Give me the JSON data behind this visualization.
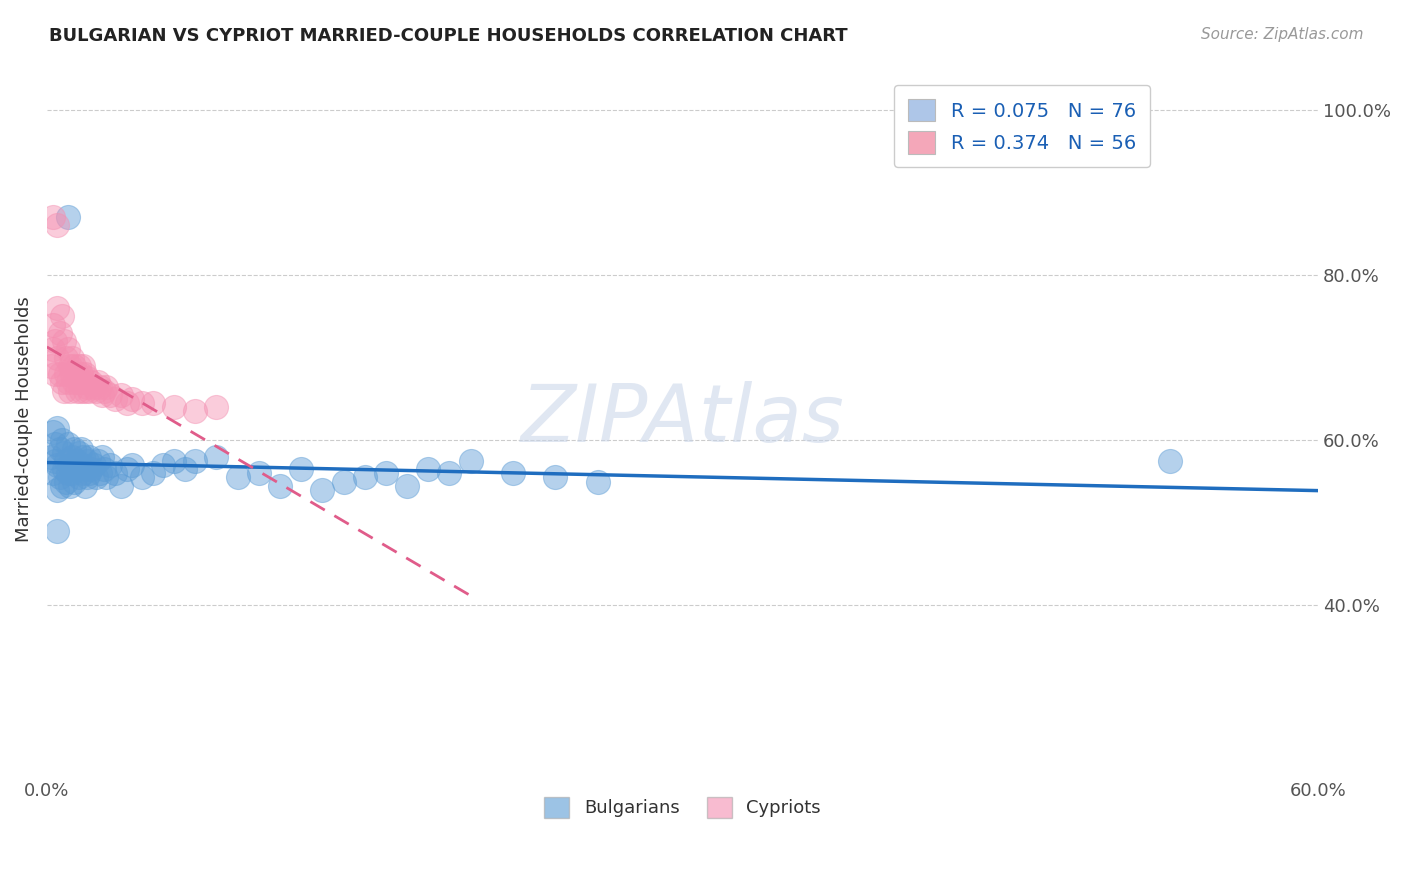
{
  "title": "BULGARIAN VS CYPRIOT MARRIED-COUPLE HOUSEHOLDS CORRELATION CHART",
  "source_text": "Source: ZipAtlas.com",
  "ylabel": "Married-couple Households",
  "watermark": "ZIPAtlas",
  "xlim": [
    0.0,
    0.6
  ],
  "ylim": [
    0.2,
    1.05
  ],
  "xticks": [
    0.0,
    0.1,
    0.2,
    0.3,
    0.4,
    0.5,
    0.6
  ],
  "xtick_labels": [
    "0.0%",
    "",
    "",
    "",
    "",
    "",
    "60.0%"
  ],
  "yticks_right": [
    0.4,
    0.6,
    0.8,
    1.0
  ],
  "ytick_labels_right": [
    "40.0%",
    "60.0%",
    "80.0%",
    "100.0%"
  ],
  "legend_entries": [
    {
      "label": "R = 0.075   N = 76",
      "color": "#aec6e8"
    },
    {
      "label": "R = 0.374   N = 56",
      "color": "#f4a7b9"
    }
  ],
  "blue_color": "#5b9bd5",
  "pink_color": "#f48fb1",
  "regression_blue_color": "#1f6dbf",
  "regression_pink_color": "#e05c8a",
  "grid_color": "#cccccc",
  "bg_color": "#ffffff",
  "title_color": "#222222",
  "bulgarians_x": [
    0.002,
    0.003,
    0.003,
    0.004,
    0.004,
    0.005,
    0.005,
    0.005,
    0.006,
    0.006,
    0.007,
    0.007,
    0.008,
    0.008,
    0.009,
    0.009,
    0.01,
    0.01,
    0.011,
    0.011,
    0.012,
    0.012,
    0.013,
    0.013,
    0.014,
    0.014,
    0.015,
    0.015,
    0.016,
    0.016,
    0.017,
    0.017,
    0.018,
    0.018,
    0.019,
    0.019,
    0.02,
    0.02,
    0.021,
    0.022,
    0.023,
    0.024,
    0.025,
    0.026,
    0.027,
    0.028,
    0.03,
    0.032,
    0.035,
    0.038,
    0.04,
    0.045,
    0.05,
    0.055,
    0.06,
    0.065,
    0.07,
    0.08,
    0.09,
    0.1,
    0.11,
    0.12,
    0.13,
    0.14,
    0.15,
    0.16,
    0.17,
    0.18,
    0.19,
    0.2,
    0.22,
    0.24,
    0.26,
    0.53,
    0.005,
    0.01
  ],
  "bulgarians_y": [
    0.58,
    0.56,
    0.61,
    0.575,
    0.595,
    0.54,
    0.57,
    0.615,
    0.555,
    0.59,
    0.545,
    0.6,
    0.565,
    0.585,
    0.55,
    0.575,
    0.56,
    0.595,
    0.545,
    0.57,
    0.58,
    0.56,
    0.59,
    0.55,
    0.575,
    0.565,
    0.585,
    0.555,
    0.57,
    0.59,
    0.56,
    0.58,
    0.545,
    0.565,
    0.555,
    0.575,
    0.56,
    0.58,
    0.565,
    0.57,
    0.555,
    0.575,
    0.56,
    0.58,
    0.565,
    0.555,
    0.57,
    0.56,
    0.545,
    0.565,
    0.57,
    0.555,
    0.56,
    0.57,
    0.575,
    0.565,
    0.575,
    0.58,
    0.555,
    0.56,
    0.545,
    0.565,
    0.54,
    0.55,
    0.555,
    0.56,
    0.545,
    0.565,
    0.56,
    0.575,
    0.56,
    0.555,
    0.55,
    0.575,
    0.49,
    0.87
  ],
  "cypriots_x": [
    0.002,
    0.003,
    0.003,
    0.004,
    0.004,
    0.005,
    0.005,
    0.006,
    0.006,
    0.007,
    0.007,
    0.008,
    0.008,
    0.009,
    0.009,
    0.01,
    0.01,
    0.011,
    0.011,
    0.012,
    0.012,
    0.013,
    0.013,
    0.014,
    0.014,
    0.015,
    0.015,
    0.016,
    0.016,
    0.017,
    0.017,
    0.018,
    0.018,
    0.019,
    0.019,
    0.02,
    0.021,
    0.022,
    0.023,
    0.024,
    0.025,
    0.026,
    0.027,
    0.028,
    0.03,
    0.032,
    0.035,
    0.038,
    0.04,
    0.045,
    0.05,
    0.06,
    0.07,
    0.08,
    0.003,
    0.005
  ],
  "cypriots_y": [
    0.69,
    0.71,
    0.74,
    0.68,
    0.72,
    0.7,
    0.76,
    0.68,
    0.73,
    0.67,
    0.75,
    0.66,
    0.72,
    0.68,
    0.7,
    0.67,
    0.71,
    0.66,
    0.69,
    0.68,
    0.7,
    0.67,
    0.69,
    0.66,
    0.68,
    0.67,
    0.69,
    0.66,
    0.68,
    0.67,
    0.69,
    0.66,
    0.68,
    0.665,
    0.675,
    0.66,
    0.67,
    0.665,
    0.66,
    0.67,
    0.665,
    0.655,
    0.66,
    0.665,
    0.655,
    0.65,
    0.655,
    0.645,
    0.65,
    0.645,
    0.645,
    0.64,
    0.635,
    0.64,
    0.87,
    0.86
  ]
}
